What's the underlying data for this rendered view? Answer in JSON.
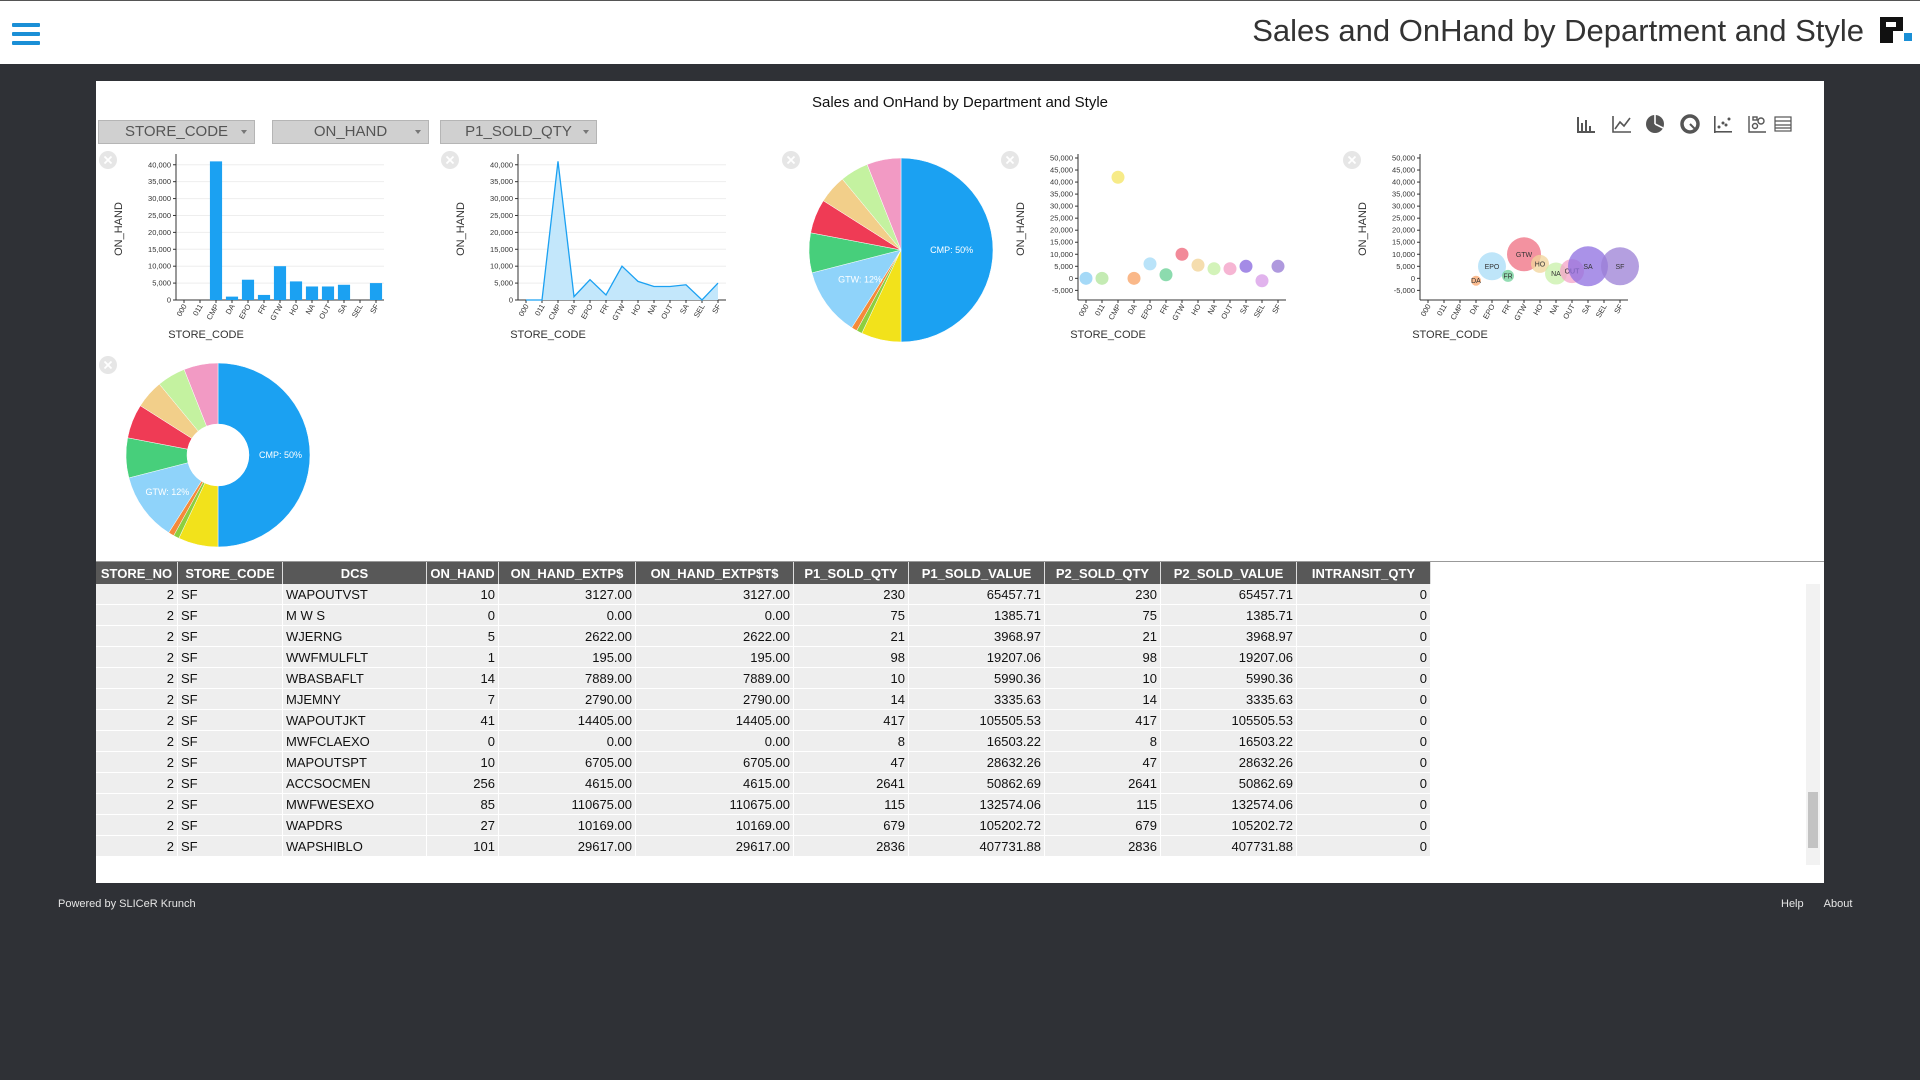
{
  "header": {
    "title": "Sales and OnHand by Department and Style"
  },
  "panel_title": "Sales and OnHand by Department and Style",
  "filters": [
    "STORE_CODE",
    "ON_HAND",
    "P1_SOLD_QTY"
  ],
  "chart_data": [
    {
      "type": "bar",
      "x_label": "STORE_CODE",
      "y_label": "ON_HAND",
      "categories": [
        "000",
        "011",
        "CMP",
        "DA",
        "EPO",
        "FR",
        "GTW",
        "HO",
        "NA",
        "OUT",
        "SA",
        "SEL",
        "SF"
      ],
      "values": [
        0,
        0,
        41000,
        1000,
        6000,
        1500,
        10000,
        5500,
        4000,
        4000,
        4500,
        0,
        5000
      ],
      "color": "#1ba1f2",
      "ylim": [
        0,
        42000
      ],
      "yticks": [
        0,
        {
          "value": 5000,
          "label": "5,000"
        },
        {
          "value": 10000,
          "label": "10,000"
        },
        {
          "value": 15000,
          "label": "15,000"
        },
        {
          "value": 20000,
          "label": "20,000"
        },
        {
          "value": 25000,
          "label": "25,000"
        },
        {
          "value": 30000,
          "label": "30,000"
        },
        {
          "value": 35000,
          "label": "35,000"
        },
        {
          "value": 40000,
          "label": "40,000"
        }
      ],
      "grid": true
    },
    {
      "type": "area",
      "x_label": "STORE_CODE",
      "y_label": "ON_HAND",
      "categories": [
        "000",
        "011",
        "CMP",
        "DA",
        "EPO",
        "FR",
        "GTW",
        "HO",
        "NA",
        "OUT",
        "SA",
        "SEL",
        "SF"
      ],
      "values": [
        0,
        0,
        41000,
        1000,
        6000,
        1500,
        10000,
        5500,
        4000,
        4000,
        4500,
        0,
        5000
      ],
      "color": "#1ba1f2",
      "ylim": [
        0,
        42000
      ],
      "yticks": [
        0,
        {
          "value": 5000,
          "label": "5,000"
        },
        {
          "value": 10000,
          "label": "10,000"
        },
        {
          "value": 15000,
          "label": "15,000"
        },
        {
          "value": 20000,
          "label": "20,000"
        },
        {
          "value": 25000,
          "label": "25,000"
        },
        {
          "value": 30000,
          "label": "30,000"
        },
        {
          "value": 35000,
          "label": "35,000"
        },
        {
          "value": 40000,
          "label": "40,000"
        }
      ],
      "grid": true
    },
    {
      "type": "pie",
      "values": [
        50,
        7,
        1,
        1,
        12,
        7,
        6,
        5,
        5,
        6
      ],
      "value_labels": [
        "CMP: 50%",
        null,
        null,
        null,
        "GTW: 12%",
        null,
        null,
        null,
        null,
        null
      ],
      "colors": [
        "#1ba1f2",
        "#f2e21b",
        "#8ccf3f",
        "#f58a3a",
        "#8fd3fa",
        "#47cf7b",
        "#ef3b55",
        "#f2cf8a",
        "#c4f2a0",
        "#f29ac4"
      ]
    },
    {
      "type": "scatter",
      "x_label": "STORE_CODE",
      "y_label": "ON_HAND",
      "categories": [
        "000",
        "011",
        "CMP",
        "DA",
        "EPO",
        "FR",
        "GTW",
        "HO",
        "NA",
        "OUT",
        "SA",
        "SEL",
        "SF"
      ],
      "values": [
        0,
        0,
        42000,
        0,
        6000,
        1500,
        10000,
        5500,
        4000,
        4000,
        5000,
        -1000,
        5000
      ],
      "colors": [
        "#8fd0f5",
        "#b5e6a0",
        "#f5e66a",
        "#f9a66b",
        "#a8dcf7",
        "#6fd29a",
        "#ef6d80",
        "#f2d49a",
        "#c8f0a8",
        "#f4a3c8",
        "#8d6ee0",
        "#d9a0e8",
        "#9b7fd6"
      ],
      "ylim": [
        -9000,
        50000
      ],
      "yticks": [
        {
          "value": -5000,
          "label": "-5,000"
        },
        0,
        {
          "value": 5000,
          "label": "5,000"
        },
        {
          "value": 10000,
          "label": "10,000"
        },
        {
          "value": 15000,
          "label": "15,000"
        },
        {
          "value": 20000,
          "label": "20,000"
        },
        {
          "value": 25000,
          "label": "25,000"
        },
        {
          "value": 30000,
          "label": "30,000"
        },
        {
          "value": 35000,
          "label": "35,000"
        },
        {
          "value": 40000,
          "label": "40,000"
        },
        {
          "value": 45000,
          "label": "45,000"
        },
        {
          "value": 50000,
          "label": "50,000"
        }
      ],
      "grid": false
    },
    {
      "type": "bubble",
      "x_label": "STORE_CODE",
      "y_label": "ON_HAND",
      "categories": [
        "000",
        "011",
        "CMP",
        "DA",
        "EPO",
        "FR",
        "GTW",
        "HO",
        "NA",
        "OUT",
        "SA",
        "SEL",
        "SF"
      ],
      "values": [
        0,
        0,
        0,
        -1000,
        5000,
        1000,
        10000,
        6000,
        2000,
        3000,
        5000,
        0,
        5000
      ],
      "sizes": [
        0,
        0,
        0,
        5,
        14,
        6,
        17,
        9,
        11,
        12,
        20,
        0,
        19
      ],
      "colors": [
        "#8fd0f5",
        "#b5e6a0",
        "#f5e66a",
        "#f9a66b",
        "#a8dcf7",
        "#6fd29a",
        "#ef6d80",
        "#f2d49a",
        "#c8f0a8",
        "#f4a3c8",
        "#8d6ee0",
        "#d9a0e8",
        "#9b7fd6"
      ],
      "ylim": [
        -9000,
        50000
      ],
      "yticks": [
        {
          "value": -5000,
          "label": "-5,000"
        },
        0,
        {
          "value": 5000,
          "label": "5,000"
        },
        {
          "value": 10000,
          "label": "10,000"
        },
        {
          "value": 15000,
          "label": "15,000"
        },
        {
          "value": 20000,
          "label": "20,000"
        },
        {
          "value": 25000,
          "label": "25,000"
        },
        {
          "value": 30000,
          "label": "30,000"
        },
        {
          "value": 35000,
          "label": "35,000"
        },
        {
          "value": 40000,
          "label": "40,000"
        },
        {
          "value": 45000,
          "label": "45,000"
        },
        {
          "value": 50000,
          "label": "50,000"
        }
      ],
      "grid": false
    },
    {
      "type": "donut",
      "values": [
        50,
        7,
        1,
        1,
        12,
        7,
        6,
        5,
        5,
        6
      ],
      "value_labels": [
        "CMP: 50%",
        null,
        null,
        null,
        "GTW: 12%",
        null,
        null,
        null,
        null,
        null
      ],
      "colors": [
        "#1ba1f2",
        "#f2e21b",
        "#8ccf3f",
        "#f58a3a",
        "#8fd3fa",
        "#47cf7b",
        "#ef3b55",
        "#f2cf8a",
        "#c4f2a0",
        "#f29ac4"
      ]
    }
  ],
  "table": {
    "columns": [
      "STORE_NO",
      "STORE_CODE",
      "DCS",
      "ON_HAND",
      "ON_HAND_EXTP$",
      "ON_HAND_EXTP$T$",
      "P1_SOLD_QTY",
      "P1_SOLD_VALUE",
      "P2_SOLD_QTY",
      "P2_SOLD_VALUE",
      "INTRANSIT_QTY"
    ],
    "rows": [
      [
        "2",
        "SF",
        "WAPOUTVST",
        "10",
        "3127.00",
        "3127.00",
        "230",
        "65457.71",
        "230",
        "65457.71",
        "0"
      ],
      [
        "2",
        "SF",
        "M W S",
        "0",
        "0.00",
        "0.00",
        "75",
        "1385.71",
        "75",
        "1385.71",
        "0"
      ],
      [
        "2",
        "SF",
        "WJERNG",
        "5",
        "2622.00",
        "2622.00",
        "21",
        "3968.97",
        "21",
        "3968.97",
        "0"
      ],
      [
        "2",
        "SF",
        "WWFMULFLT",
        "1",
        "195.00",
        "195.00",
        "98",
        "19207.06",
        "98",
        "19207.06",
        "0"
      ],
      [
        "2",
        "SF",
        "WBASBAFLT",
        "14",
        "7889.00",
        "7889.00",
        "10",
        "5990.36",
        "10",
        "5990.36",
        "0"
      ],
      [
        "2",
        "SF",
        "MJEMNY",
        "7",
        "2790.00",
        "2790.00",
        "14",
        "3335.63",
        "14",
        "3335.63",
        "0"
      ],
      [
        "2",
        "SF",
        "WAPOUTJKT",
        "41",
        "14405.00",
        "14405.00",
        "417",
        "105505.53",
        "417",
        "105505.53",
        "0"
      ],
      [
        "2",
        "SF",
        "MWFCLAEXO",
        "0",
        "0.00",
        "0.00",
        "8",
        "16503.22",
        "8",
        "16503.22",
        "0"
      ],
      [
        "2",
        "SF",
        "MAPOUTSPT",
        "10",
        "6705.00",
        "6705.00",
        "47",
        "28632.26",
        "47",
        "28632.26",
        "0"
      ],
      [
        "2",
        "SF",
        "ACCSOCMEN",
        "256",
        "4615.00",
        "4615.00",
        "2641",
        "50862.69",
        "2641",
        "50862.69",
        "0"
      ],
      [
        "2",
        "SF",
        "MWFWESEXO",
        "85",
        "110675.00",
        "110675.00",
        "115",
        "132574.06",
        "115",
        "132574.06",
        "0"
      ],
      [
        "2",
        "SF",
        "WAPDRS",
        "27",
        "10169.00",
        "10169.00",
        "679",
        "105202.72",
        "679",
        "105202.72",
        "0"
      ],
      [
        "2",
        "SF",
        "WAPSHIBLO",
        "101",
        "29617.00",
        "29617.00",
        "2836",
        "407731.88",
        "2836",
        "407731.88",
        "0"
      ]
    ]
  },
  "footer": {
    "credit": "Powered by SLICeR Krunch",
    "links": [
      "Help",
      "About"
    ]
  }
}
